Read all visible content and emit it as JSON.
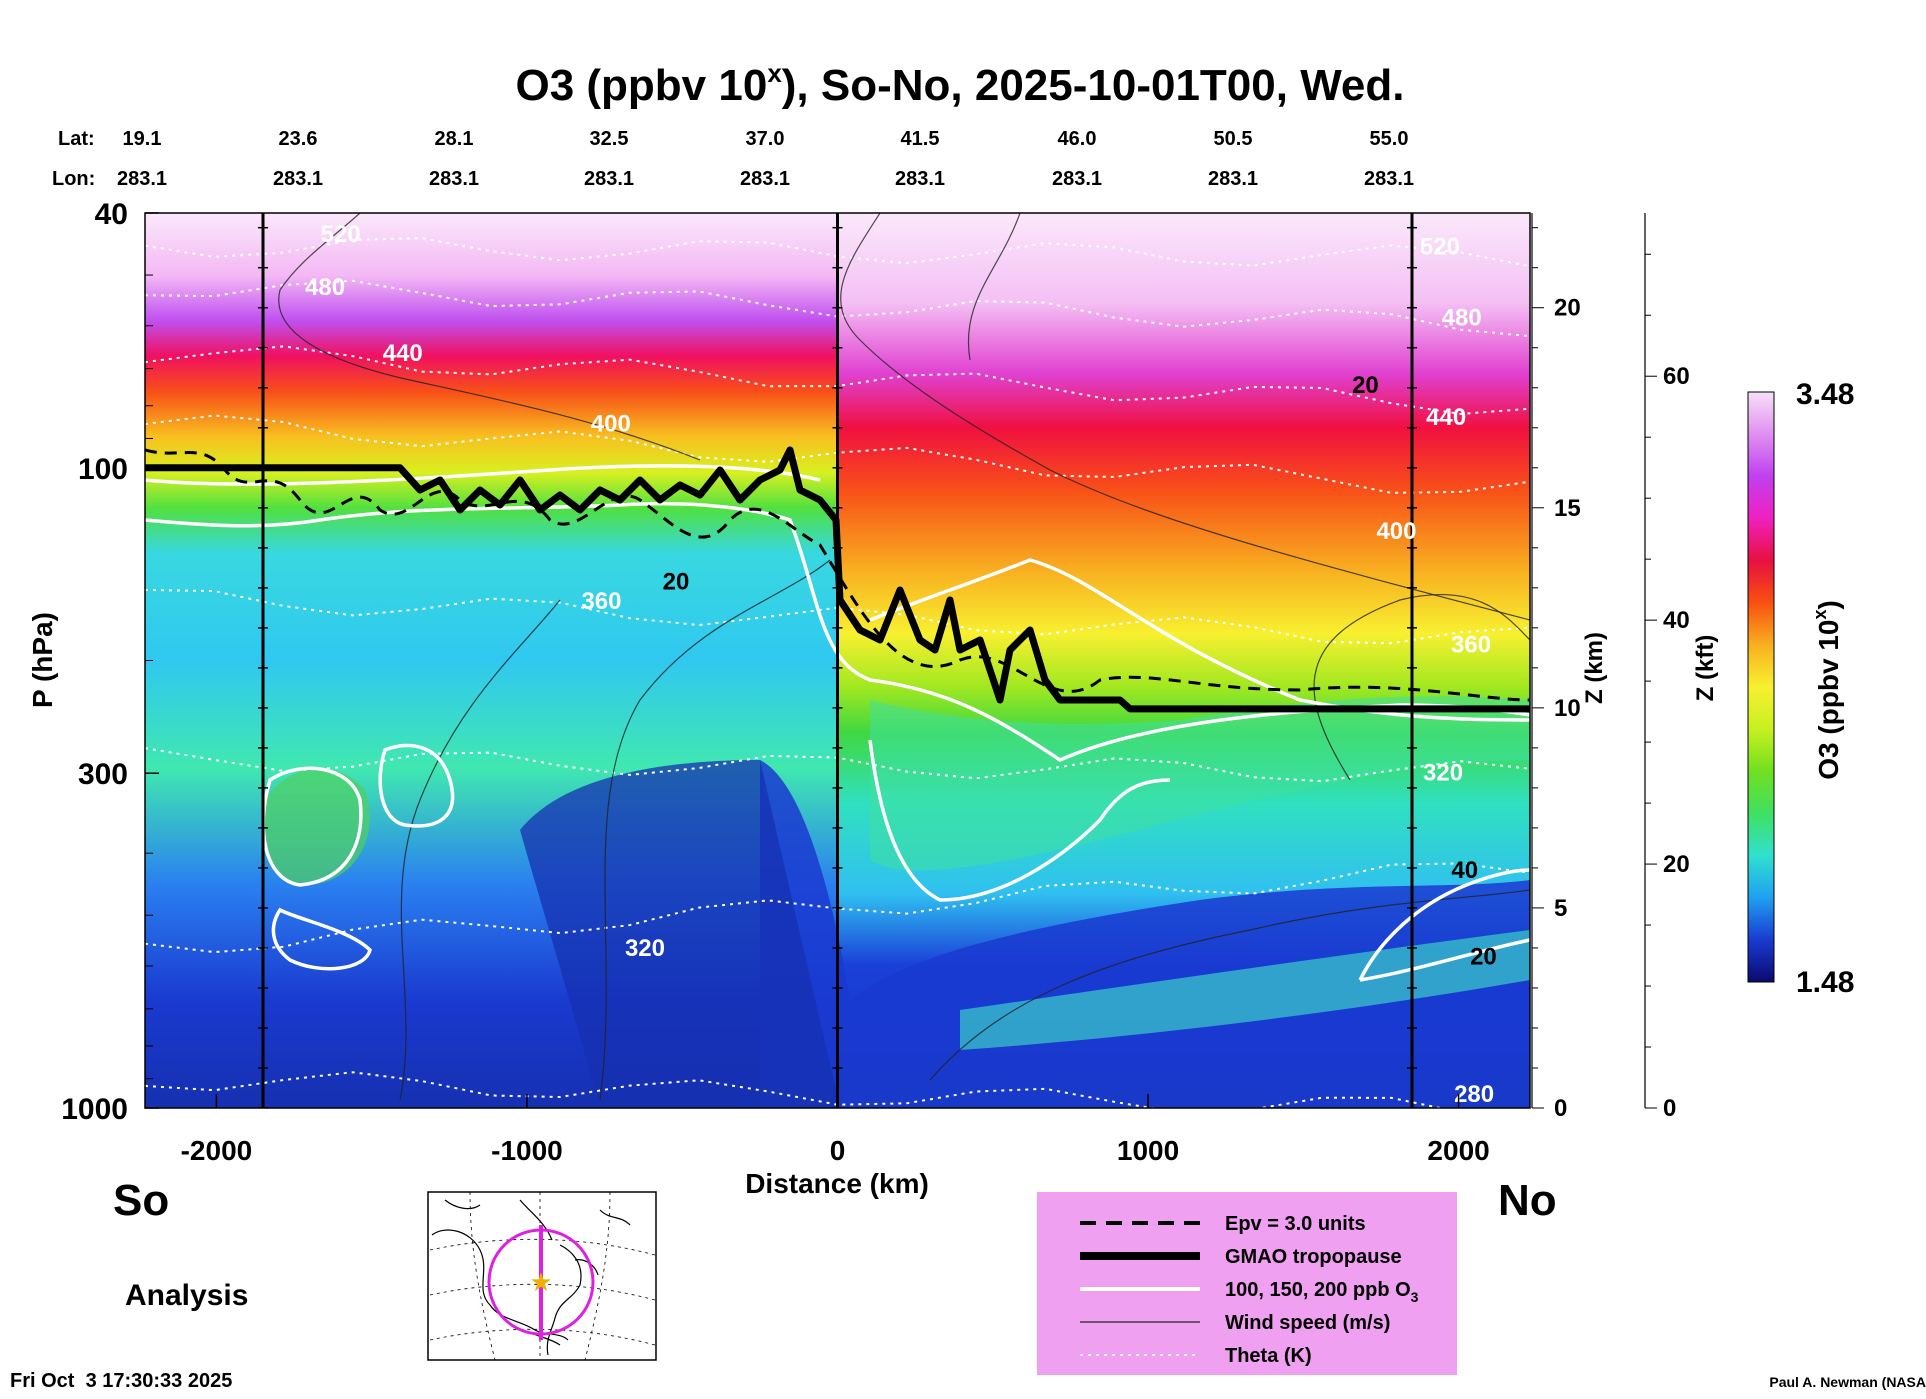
{
  "chart_data": {
    "type": "heatmap",
    "title_main": "O3 (ppbv 10",
    "title_sup": "x",
    "title_rest": "), So-No, 2025-10-01T00, Wed.",
    "lat_label": "Lat:",
    "lon_label": "Lon:",
    "lat_ticks": [
      "19.1",
      "23.6",
      "28.1",
      "32.5",
      "37.0",
      "41.5",
      "46.0",
      "50.5",
      "55.0"
    ],
    "lon_ticks": [
      "283.1",
      "283.1",
      "283.1",
      "283.1",
      "283.1",
      "283.1",
      "283.1",
      "283.1",
      "283.1"
    ],
    "xlabel": "Distance (km)",
    "xlim": [
      -2230,
      2230
    ],
    "x_ticks": [
      -2000,
      -1000,
      0,
      1000,
      2000
    ],
    "x_tick_labels": [
      "-2000",
      "-1000",
      "0",
      "1000",
      "2000"
    ],
    "ylabel": "P (hPa)",
    "ylim": [
      1000,
      40
    ],
    "y_scale": "log",
    "y_ticks": [
      40,
      100,
      300,
      1000
    ],
    "y_tick_labels": [
      "40",
      "100",
      "300",
      "1000"
    ],
    "z_km_label": "Z (km)",
    "z_km_ticks": [
      0,
      5,
      10,
      15,
      20
    ],
    "z_km_tick_labels": [
      "0",
      "5",
      "10",
      "15",
      "20"
    ],
    "z_kft_label": "Z (kft)",
    "z_kft_ticks": [
      0,
      20,
      40,
      60
    ],
    "z_kft_tick_labels": [
      "0",
      "20",
      "40",
      "60"
    ],
    "colorbar_label": "O3 (ppbv 10",
    "colorbar_sup": "x",
    "colorbar_close": ")",
    "colorbar_max": "3.48",
    "colorbar_min": "1.48",
    "colorbar_range": [
      1.48,
      3.48
    ],
    "colorbar_colors": [
      "#0a0a6e",
      "#1a3ad0",
      "#20a0f0",
      "#30e0d0",
      "#40e060",
      "#70e020",
      "#c8f020",
      "#f8f030",
      "#f8b020",
      "#f85010",
      "#e81040",
      "#f020c0",
      "#c040f0",
      "#e090f0",
      "#f8e0f8"
    ],
    "vertical_markers_km": [
      -1850,
      0,
      1850
    ],
    "theta_labels": [
      {
        "text": "520",
        "x": -1600,
        "p": 43,
        "color": "#ffffff"
      },
      {
        "text": "480",
        "x": -1650,
        "p": 52,
        "color": "#ffffff"
      },
      {
        "text": "440",
        "x": -1400,
        "p": 66,
        "color": "#ffffff"
      },
      {
        "text": "400",
        "x": -730,
        "p": 85,
        "color": "#ffffff"
      },
      {
        "text": "360",
        "x": -760,
        "p": 161,
        "color": "#ffffff"
      },
      {
        "text": "320",
        "x": -620,
        "p": 560,
        "color": "#ffffff"
      },
      {
        "text": "520",
        "x": 1940,
        "p": 45,
        "color": "#ffffff"
      },
      {
        "text": "480",
        "x": 2010,
        "p": 58,
        "color": "#ffffff"
      },
      {
        "text": "440",
        "x": 1960,
        "p": 83,
        "color": "#ffffff"
      },
      {
        "text": "400",
        "x": 1800,
        "p": 125,
        "color": "#ffffff"
      },
      {
        "text": "360",
        "x": 2040,
        "p": 188,
        "color": "#ffffff"
      },
      {
        "text": "320",
        "x": 1950,
        "p": 298,
        "color": "#ffffff"
      },
      {
        "text": "280",
        "x": 2050,
        "p": 947,
        "color": "#ffffff"
      }
    ],
    "wind_labels": [
      {
        "text": "20",
        "x": 1700,
        "p": 74
      },
      {
        "text": "20",
        "x": -520,
        "p": 150
      },
      {
        "text": "40",
        "x": 2020,
        "p": 423
      },
      {
        "text": "20",
        "x": 2080,
        "p": 578
      }
    ],
    "tropopause_left_p": 100,
    "tropopause_right_p": 238,
    "direction_left": "So",
    "direction_right": "No",
    "analysis_label": "Analysis",
    "timestamp": "Fri Oct  3 17:30:33 2025",
    "credit": "Paul A. Newman (NASA",
    "legend": [
      {
        "style": "dashed",
        "label": "Epv = 3.0 units"
      },
      {
        "style": "thick",
        "label": "GMAO tropopause"
      },
      {
        "style": "white",
        "label": "100, 150, 200 ppb O",
        "sub": "3"
      },
      {
        "style": "thin",
        "label": "Wind speed (m/s)"
      },
      {
        "style": "dotted",
        "label": "Theta (K)"
      }
    ],
    "legend_bg": "#f0a0f0"
  }
}
